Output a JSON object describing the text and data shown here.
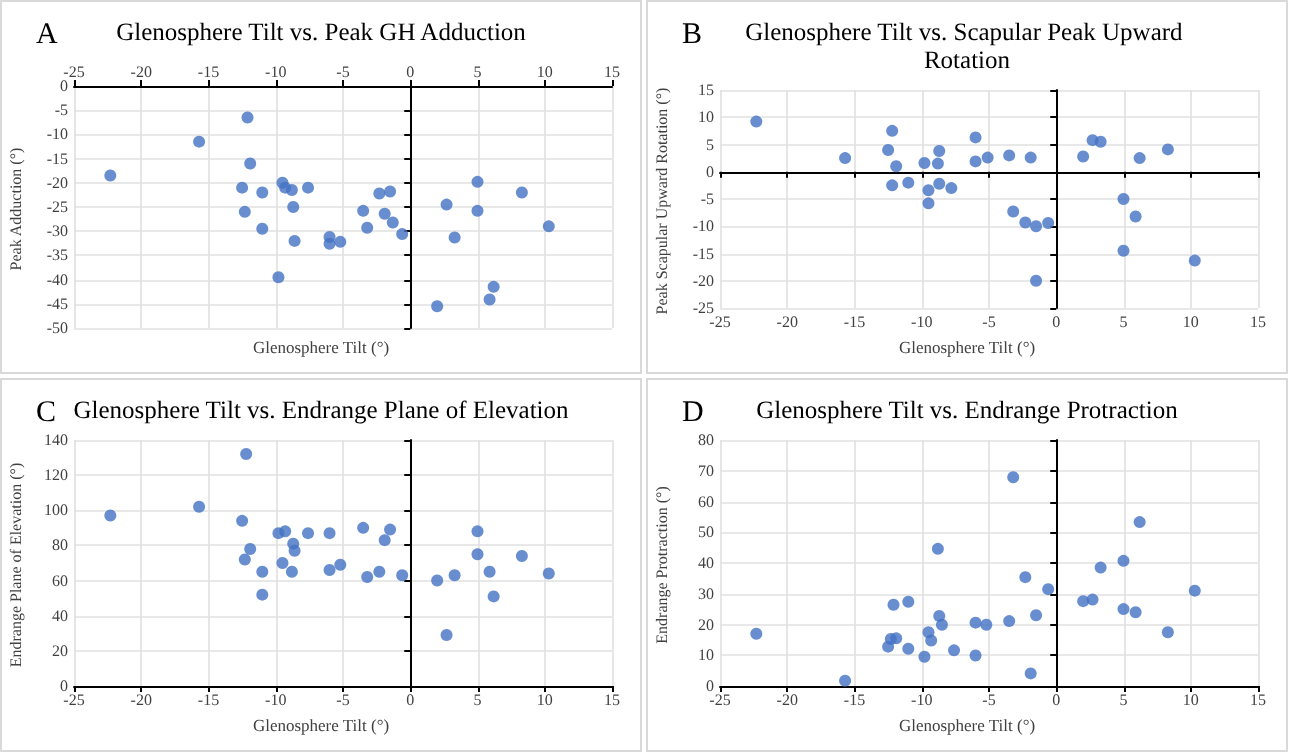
{
  "chart_data": [
    {
      "type": "scatter",
      "title": "Glenosphere Tilt vs. Peak GH Adduction",
      "xlabel": "Glenosphere Tilt (°)",
      "ylabel": "Peak Adduction (°)",
      "annotations": [
        "A"
      ],
      "color": "#4472c4",
      "marker": "circle",
      "grid": true,
      "x": [
        -22.3,
        -15.7,
        -12.5,
        -12.1,
        -12.3,
        -11.9,
        -11.0,
        -11.0,
        -9.8,
        -9.5,
        -9.3,
        -8.8,
        -8.7,
        -8.6,
        -7.6,
        -6.0,
        -6.0,
        -5.2,
        -3.5,
        -3.2,
        -2.3,
        -1.9,
        -1.5,
        -1.3,
        -0.6,
        2.0,
        2.7,
        3.3,
        5.0,
        5.0,
        5.9,
        6.2,
        8.3,
        10.3
      ],
      "values": [
        -18.5,
        -11.5,
        -21,
        -6.5,
        -26,
        -16,
        -22,
        -29.5,
        -39.5,
        -20,
        -21,
        -21.5,
        -25,
        -32,
        -21,
        -31.2,
        -32.6,
        -32.2,
        -25.8,
        -29.3,
        -22.2,
        -26.4,
        -21.8,
        -28.2,
        -30.6,
        -45.5,
        -24.5,
        -31.3,
        -19.8,
        -25.8,
        -44.1,
        -41.5,
        -22,
        -29
      ],
      "xlim": [
        -25,
        15
      ],
      "xticks": [
        -25,
        -20,
        -15,
        -10,
        -5,
        0,
        5,
        10,
        15
      ],
      "ylim": [
        -50,
        0
      ],
      "yticks": [
        -50,
        -45,
        -40,
        -35,
        -30,
        -25,
        -20,
        -15,
        -10,
        -5,
        0
      ]
    },
    {
      "type": "scatter",
      "title": "Glenosphere Tilt vs. Scapular Peak Upward Rotation",
      "xlabel": "Glenosphere Tilt (°)",
      "ylabel": "Peak Scapular Upward Rotation (°)",
      "annotations": [
        "B"
      ],
      "color": "#4472c4",
      "marker": "circle",
      "grid": true,
      "x": [
        -22.3,
        -15.7,
        -12.5,
        -12.2,
        -12.2,
        -11.9,
        -11.0,
        -9.8,
        -9.5,
        -9.5,
        -8.8,
        -8.7,
        -8.7,
        -7.8,
        -6.0,
        -6.0,
        -5.1,
        -3.5,
        -3.2,
        -2.3,
        -1.9,
        -1.5,
        -1.5,
        -0.6,
        2.0,
        2.7,
        3.3,
        5.0,
        5.0,
        5.9,
        6.2,
        8.3,
        10.3
      ],
      "values": [
        9.2,
        2.5,
        4,
        7.5,
        -2.5,
        1,
        -2,
        1.6,
        -3.4,
        -5.8,
        1.5,
        3.8,
        -2.2,
        -3,
        6.3,
        1.9,
        2.6,
        3,
        -7.3,
        -9.3,
        2.6,
        -10,
        -20,
        -9.4,
        2.8,
        5.8,
        5.5,
        -5,
        -14.5,
        -8.2,
        2.5,
        4.1,
        -16.3
      ],
      "xlim": [
        -25,
        15
      ],
      "xticks": [
        -25,
        -20,
        -15,
        -10,
        -5,
        0,
        5,
        10,
        15
      ],
      "ylim": [
        -25,
        15
      ],
      "yticks": [
        -25,
        -20,
        -15,
        -10,
        -5,
        0,
        5,
        10,
        15
      ]
    },
    {
      "type": "scatter",
      "title": "Glenosphere Tilt vs. Endrange Plane of Elevation",
      "xlabel": "Glenosphere Tilt (°)",
      "ylabel": "Endrange Plane of Elevation (°)",
      "annotations": [
        "C"
      ],
      "color": "#4472c4",
      "marker": "circle",
      "grid": true,
      "x": [
        -22.3,
        -15.7,
        -12.5,
        -12.2,
        -12.3,
        -11.9,
        -11.0,
        -11.0,
        -9.8,
        -9.5,
        -9.3,
        -8.7,
        -8.8,
        -8.6,
        -7.6,
        -6.0,
        -6.0,
        -5.2,
        -3.5,
        -3.2,
        -2.3,
        -1.9,
        -1.5,
        -0.6,
        2.0,
        2.7,
        3.3,
        5.0,
        5.0,
        5.9,
        6.2,
        8.3,
        10.3
      ],
      "values": [
        97,
        102,
        94,
        132,
        72,
        78,
        65,
        52,
        87,
        70,
        88,
        81,
        65,
        77,
        87,
        87,
        66,
        69,
        90,
        62,
        65,
        83,
        89,
        63,
        60,
        29,
        63,
        88,
        75,
        65,
        51,
        74,
        64
      ],
      "xlim": [
        -25,
        15
      ],
      "xticks": [
        -25,
        -20,
        -15,
        -10,
        -5,
        0,
        5,
        10,
        15
      ],
      "ylim": [
        0,
        140
      ],
      "yticks": [
        0,
        20,
        40,
        60,
        80,
        100,
        120,
        140
      ]
    },
    {
      "type": "scatter",
      "title": "Glenosphere Tilt vs. Endrange Protraction",
      "xlabel": "Glenosphere Tilt (°)",
      "ylabel": "Endrange Protraction (°)",
      "annotations": [
        "D"
      ],
      "color": "#4472c4",
      "marker": "circle",
      "grid": true,
      "x": [
        -22.3,
        -15.7,
        -12.1,
        -12.5,
        -12.3,
        -11.9,
        -11.0,
        -11.0,
        -9.8,
        -9.5,
        -9.3,
        -8.8,
        -8.7,
        -8.5,
        -7.6,
        -6.0,
        -6.0,
        -5.2,
        -3.5,
        -3.2,
        -2.3,
        -1.9,
        -1.5,
        -0.6,
        2.0,
        2.7,
        3.3,
        5.0,
        5.0,
        5.9,
        6.2,
        8.3,
        10.3
      ],
      "values": [
        17,
        1.7,
        26.4,
        12.8,
        15.3,
        15.5,
        27.4,
        12.1,
        9.5,
        17.5,
        14.8,
        44.6,
        22.8,
        19.9,
        11.6,
        20.6,
        9.9,
        19.9,
        21.1,
        67.9,
        35.4,
        4.1,
        23,
        31.5,
        27.6,
        28.1,
        38.5,
        40.7,
        25,
        24,
        53.3,
        17.5,
        31
      ],
      "xlim": [
        -25,
        15
      ],
      "xticks": [
        -25,
        -20,
        -15,
        -10,
        -5,
        0,
        5,
        10,
        15
      ],
      "ylim": [
        0,
        80
      ],
      "yticks": [
        0,
        10,
        20,
        30,
        40,
        50,
        60,
        70,
        80
      ]
    }
  ]
}
